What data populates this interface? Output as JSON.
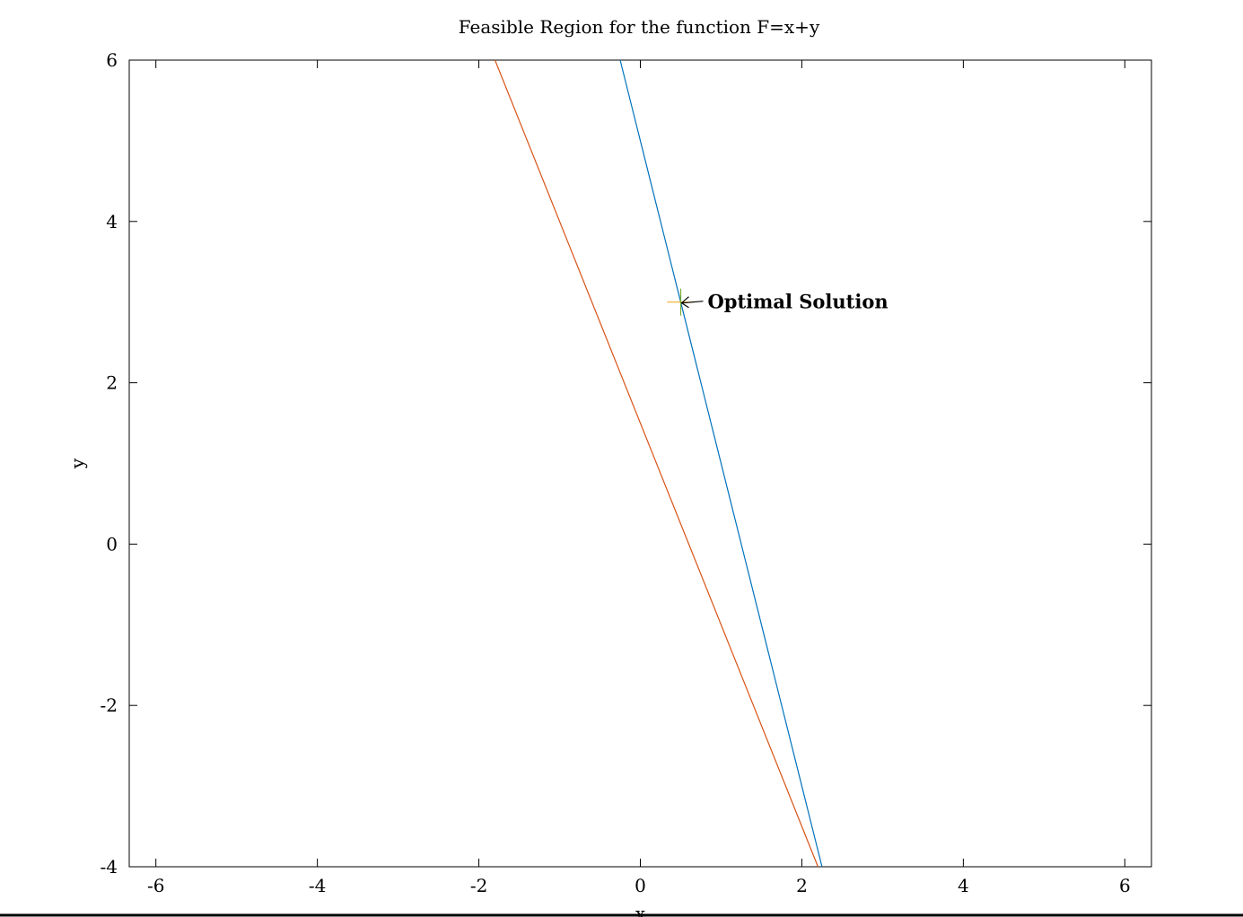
{
  "chart_data": {
    "type": "line",
    "title": "Feasible Region for the function F=x+y",
    "xlabel": "x",
    "ylabel": "y",
    "xlim": [
      -6.33,
      6.33
    ],
    "ylim": [
      -4,
      6
    ],
    "xticks": [
      -6,
      -4,
      -2,
      0,
      2,
      4,
      6
    ],
    "yticks": [
      -4,
      -2,
      0,
      2,
      4,
      6
    ],
    "xtick_labels": [
      "-6",
      "-4",
      "-2",
      "0",
      "2",
      "4",
      "6"
    ],
    "ytick_labels": [
      "-4",
      "-2",
      "0",
      "2",
      "4",
      "6"
    ],
    "grid": false,
    "legend": "none",
    "series": [
      {
        "color": "#0072BD",
        "x": [
          -0.25,
          2.25
        ],
        "y": [
          6,
          -4
        ]
      },
      {
        "color": "#D95319",
        "x": [
          -1.8,
          2.2
        ],
        "y": [
          6,
          -4
        ]
      }
    ],
    "markers": [
      {
        "marker": "+",
        "x": 0.5,
        "y": 3,
        "colors": [
          "#EDB120",
          "#77AC30"
        ]
      }
    ],
    "annotations": [
      {
        "text": "Optimal Solution",
        "x": 0.5,
        "y": 3,
        "arrow": true
      }
    ]
  }
}
